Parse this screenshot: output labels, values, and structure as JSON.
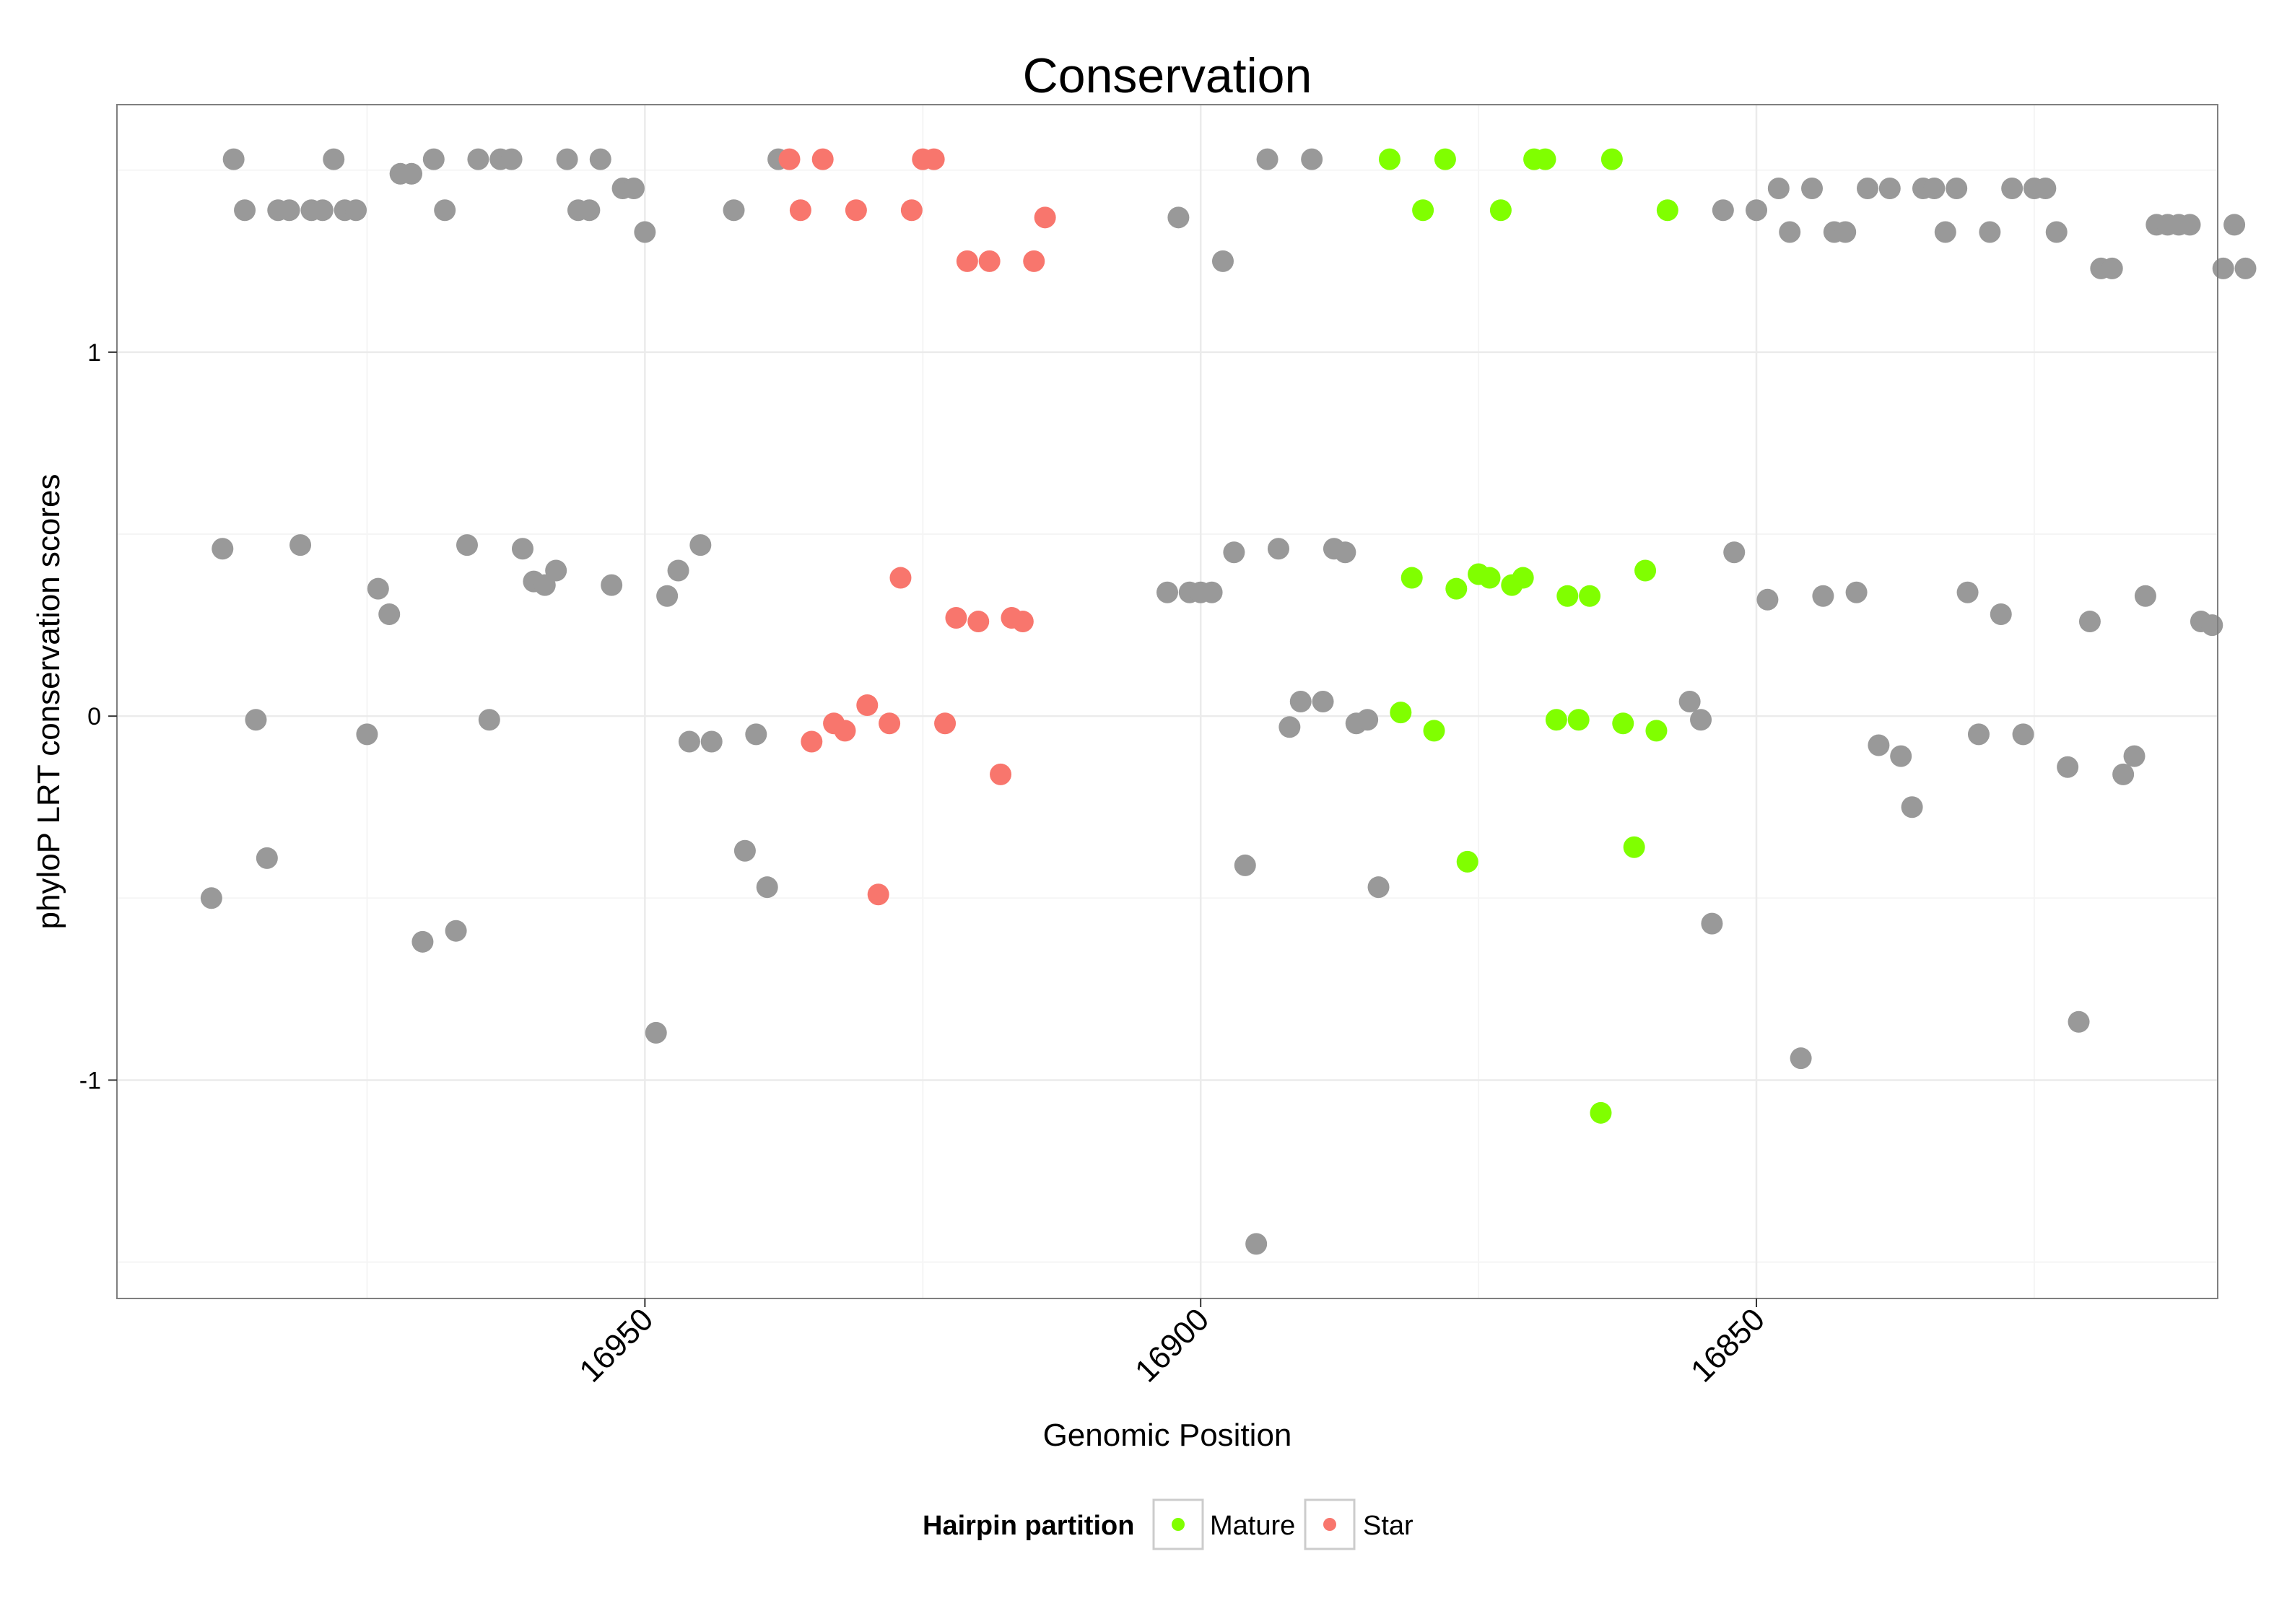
{
  "chart_data": {
    "type": "scatter",
    "title": "Conservation",
    "xlabel": "Genomic Position",
    "ylabel": "phyloP LRT conservation scores",
    "xlim_reversed": [
      16997.5,
      16808.5
    ],
    "ylim": [
      -1.6,
      1.68
    ],
    "x_ticks": [
      {
        "value": 16950,
        "label": "16950"
      },
      {
        "value": 16900,
        "label": "16900"
      },
      {
        "value": 16850,
        "label": "16850"
      }
    ],
    "y_ticks": [
      {
        "value": 1,
        "label": "1"
      },
      {
        "value": 0,
        "label": "0"
      },
      {
        "value": -1,
        "label": "-1"
      }
    ],
    "grid": true,
    "legend": {
      "title": "Hairpin partition",
      "position": "bottom",
      "entries": [
        {
          "label": "Mature",
          "color": "#80ff00"
        },
        {
          "label": "Star",
          "color": "#f8766d"
        }
      ]
    },
    "colors": {
      "Other": "#999999",
      "Mature": "#80ff00",
      "Star": "#f8766d"
    },
    "series": [
      {
        "name": "Other",
        "points": [
          [
            16989,
            -0.5
          ],
          [
            16988,
            0.46
          ],
          [
            16987,
            1.53
          ],
          [
            16986,
            1.39
          ],
          [
            16985,
            -0.01
          ],
          [
            16984,
            -0.39
          ],
          [
            16983,
            1.39
          ],
          [
            16982,
            1.39
          ],
          [
            16981,
            0.47
          ],
          [
            16980,
            1.39
          ],
          [
            16979,
            1.39
          ],
          [
            16978,
            1.53
          ],
          [
            16977,
            1.39
          ],
          [
            16976,
            1.39
          ],
          [
            16975,
            -0.05
          ],
          [
            16974,
            0.35
          ],
          [
            16973,
            0.28
          ],
          [
            16972,
            1.49
          ],
          [
            16971,
            1.49
          ],
          [
            16970,
            -0.62
          ],
          [
            16969,
            1.53
          ],
          [
            16968,
            1.39
          ],
          [
            16967,
            -0.59
          ],
          [
            16966,
            0.47
          ],
          [
            16965,
            1.53
          ],
          [
            16964,
            -0.01
          ],
          [
            16963,
            1.53
          ],
          [
            16962,
            1.53
          ],
          [
            16961,
            0.46
          ],
          [
            16960,
            0.37
          ],
          [
            16959,
            0.36
          ],
          [
            16958,
            0.4
          ],
          [
            16957,
            1.53
          ],
          [
            16956,
            1.39
          ],
          [
            16955,
            1.39
          ],
          [
            16954,
            1.53
          ],
          [
            16953,
            0.36
          ],
          [
            16952,
            1.45
          ],
          [
            16951,
            1.45
          ],
          [
            16950,
            1.33
          ],
          [
            16949,
            -0.87
          ],
          [
            16948,
            0.33
          ],
          [
            16947,
            0.4
          ],
          [
            16946,
            -0.07
          ],
          [
            16945,
            0.47
          ],
          [
            16944,
            -0.07
          ],
          [
            16942,
            1.39
          ],
          [
            16941,
            -0.37
          ],
          [
            16940,
            -0.05
          ],
          [
            16939,
            -0.47
          ],
          [
            16938,
            1.53
          ],
          [
            16903,
            0.34
          ],
          [
            16902,
            1.37
          ],
          [
            16901,
            0.34
          ],
          [
            16900,
            0.34
          ],
          [
            16899,
            0.34
          ],
          [
            16898,
            1.25
          ],
          [
            16897,
            0.45
          ],
          [
            16896,
            -0.41
          ],
          [
            16895,
            -1.45
          ],
          [
            16894,
            1.53
          ],
          [
            16893,
            0.46
          ],
          [
            16892,
            -0.03
          ],
          [
            16891,
            0.04
          ],
          [
            16890,
            1.53
          ],
          [
            16889,
            0.04
          ],
          [
            16888,
            0.46
          ],
          [
            16887,
            0.45
          ],
          [
            16886,
            -0.02
          ],
          [
            16885,
            -0.01
          ],
          [
            16884,
            -0.47
          ],
          [
            16856,
            0.04
          ],
          [
            16855,
            -0.01
          ],
          [
            16854,
            -0.57
          ],
          [
            16853,
            1.39
          ],
          [
            16852,
            0.45
          ],
          [
            16850,
            1.39
          ],
          [
            16849,
            0.32
          ],
          [
            16848,
            1.45
          ],
          [
            16847,
            1.33
          ],
          [
            16846,
            -0.94
          ],
          [
            16845,
            1.45
          ],
          [
            16844,
            0.33
          ],
          [
            16843,
            1.33
          ],
          [
            16842,
            1.33
          ],
          [
            16841,
            0.34
          ],
          [
            16840,
            1.45
          ],
          [
            16839,
            -0.08
          ],
          [
            16838,
            1.45
          ],
          [
            16837,
            -0.11
          ],
          [
            16836,
            -0.25
          ],
          [
            16835,
            1.45
          ],
          [
            16834,
            1.45
          ],
          [
            16833,
            1.33
          ],
          [
            16832,
            1.45
          ],
          [
            16831,
            0.34
          ],
          [
            16830,
            -0.05
          ],
          [
            16829,
            1.33
          ],
          [
            16828,
            0.28
          ],
          [
            16827,
            1.45
          ],
          [
            16826,
            -0.05
          ],
          [
            16825,
            1.45
          ],
          [
            16824,
            1.45
          ],
          [
            16823,
            1.33
          ],
          [
            16822,
            -0.14
          ],
          [
            16821,
            -0.84
          ],
          [
            16820,
            0.26
          ],
          [
            16819,
            1.23
          ],
          [
            16818,
            1.23
          ],
          [
            16817,
            -0.16
          ],
          [
            16816,
            -0.11
          ],
          [
            16815,
            0.33
          ],
          [
            16814,
            1.35
          ],
          [
            16813,
            1.35
          ],
          [
            16812,
            1.35
          ],
          [
            16811,
            1.35
          ],
          [
            16810,
            0.26
          ],
          [
            16809,
            0.25
          ],
          [
            16808,
            1.23
          ],
          [
            16807,
            1.35
          ],
          [
            16806,
            1.23
          ]
        ]
      },
      {
        "name": "Star",
        "points": [
          [
            16937,
            1.53
          ],
          [
            16936,
            1.39
          ],
          [
            16935,
            -0.07
          ],
          [
            16934,
            1.53
          ],
          [
            16933,
            -0.02
          ],
          [
            16932,
            -0.04
          ],
          [
            16931,
            1.39
          ],
          [
            16930,
            0.03
          ],
          [
            16929,
            -0.49
          ],
          [
            16928,
            -0.02
          ],
          [
            16927,
            0.38
          ],
          [
            16926,
            1.39
          ],
          [
            16925,
            1.53
          ],
          [
            16924,
            1.53
          ],
          [
            16923,
            -0.02
          ],
          [
            16922,
            0.27
          ],
          [
            16921,
            1.25
          ],
          [
            16920,
            0.26
          ],
          [
            16919,
            1.25
          ],
          [
            16918,
            -0.16
          ],
          [
            16917,
            0.27
          ],
          [
            16916,
            0.26
          ],
          [
            16915,
            1.25
          ],
          [
            16914,
            1.37
          ]
        ]
      },
      {
        "name": "Mature",
        "points": [
          [
            16883,
            1.53
          ],
          [
            16882,
            0.01
          ],
          [
            16881,
            0.38
          ],
          [
            16880,
            1.39
          ],
          [
            16879,
            -0.04
          ],
          [
            16878,
            1.53
          ],
          [
            16877,
            0.35
          ],
          [
            16876,
            -0.4
          ],
          [
            16875,
            0.39
          ],
          [
            16874,
            0.38
          ],
          [
            16873,
            1.39
          ],
          [
            16872,
            0.36
          ],
          [
            16871,
            0.38
          ],
          [
            16870,
            1.53
          ],
          [
            16869,
            1.53
          ],
          [
            16868,
            -0.01
          ],
          [
            16867,
            0.33
          ],
          [
            16866,
            -0.01
          ],
          [
            16865,
            0.33
          ],
          [
            16864,
            -1.09
          ],
          [
            16863,
            1.53
          ],
          [
            16862,
            -0.02
          ],
          [
            16861,
            -0.36
          ],
          [
            16860,
            0.4
          ],
          [
            16859,
            -0.04
          ],
          [
            16858,
            1.39
          ]
        ]
      }
    ]
  }
}
